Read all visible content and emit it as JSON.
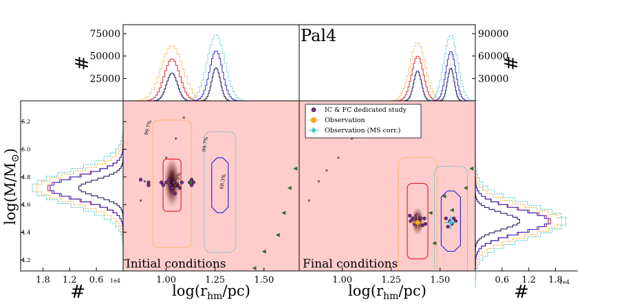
{
  "colors": {
    "panel_bg": "#ffcccc",
    "red": "#e8202a",
    "blue": "#2f2bd8",
    "orange": "#f5a623",
    "teal": "#3fc0c8",
    "navy": "#1a1a5a",
    "green": "#2b6b2b",
    "purple": "#7b2a8c"
  },
  "chart_data": [
    {
      "id": "top-left-histogram",
      "type": "histogram",
      "ylabel": "#",
      "yticks": [
        "25000",
        "50000",
        "75000"
      ],
      "ytick_values": [
        25000,
        50000,
        75000
      ],
      "ylim": [
        0,
        85000
      ],
      "xlim": [
        0.78,
        1.68
      ],
      "series": [
        {
          "name": "IC outer (orange)",
          "color": "orange",
          "center": 1.03,
          "width": 0.055,
          "peak": 62000
        },
        {
          "name": "IC middle (red)",
          "color": "red",
          "center": 1.03,
          "width": 0.04,
          "peak": 47000
        },
        {
          "name": "IC inner (navy)",
          "color": "navy",
          "center": 1.03,
          "width": 0.028,
          "peak": 31000
        },
        {
          "name": "MS outer (teal)",
          "color": "teal",
          "center": 1.255,
          "width": 0.045,
          "peak": 74000
        },
        {
          "name": "MS middle (blue)",
          "color": "blue",
          "center": 1.255,
          "width": 0.033,
          "peak": 56000
        },
        {
          "name": "MS inner (navy)",
          "color": "navy",
          "center": 1.255,
          "width": 0.022,
          "peak": 37000
        }
      ]
    },
    {
      "id": "top-right-histogram",
      "type": "histogram",
      "title": "Pal4",
      "ylabel": "#",
      "yticks": [
        "30000",
        "60000",
        "90000"
      ],
      "ytick_values": [
        30000,
        60000,
        90000
      ],
      "ylim": [
        0,
        102000
      ],
      "xlim": [
        0.78,
        1.68
      ],
      "series": [
        {
          "name": "FC outer (orange)",
          "color": "orange",
          "center": 1.385,
          "width": 0.04,
          "peak": 78000
        },
        {
          "name": "FC middle (red)",
          "color": "red",
          "center": 1.385,
          "width": 0.03,
          "peak": 60000
        },
        {
          "name": "FC inner (navy)",
          "color": "navy",
          "center": 1.385,
          "width": 0.02,
          "peak": 40000
        },
        {
          "name": "MS outer (teal)",
          "color": "teal",
          "center": 1.555,
          "width": 0.035,
          "peak": 88000
        },
        {
          "name": "MS middle (blue)",
          "color": "blue",
          "center": 1.555,
          "width": 0.025,
          "peak": 66000
        },
        {
          "name": "MS inner (navy)",
          "color": "navy",
          "center": 1.555,
          "width": 0.017,
          "peak": 44000
        }
      ]
    },
    {
      "id": "left-side-histogram",
      "type": "histogram",
      "xlabel": "#",
      "xticks": [
        "1.8",
        "1.2",
        "0.6"
      ],
      "xtick_values": [
        1.8,
        1.2,
        0.6
      ],
      "offset_label": "1e4",
      "xlim": [
        2.3,
        0
      ],
      "ylim": [
        4.12,
        5.35
      ],
      "series": [
        {
          "name": "teal",
          "color": "teal",
          "center": 4.72,
          "width": 0.12,
          "peak": 2.05
        },
        {
          "name": "orange",
          "color": "orange",
          "center": 4.72,
          "width": 0.105,
          "peak": 1.95
        },
        {
          "name": "red",
          "color": "red",
          "center": 4.72,
          "width": 0.085,
          "peak": 1.7
        },
        {
          "name": "blue",
          "color": "blue",
          "center": 4.72,
          "width": 0.085,
          "peak": 1.65
        },
        {
          "name": "navy",
          "color": "navy",
          "center": 4.72,
          "width": 0.06,
          "peak": 1.0
        }
      ]
    },
    {
      "id": "right-side-histogram",
      "type": "histogram",
      "xlabel": "#",
      "xticks": [
        "0.6",
        "1.2",
        "1.8"
      ],
      "xtick_values": [
        0.6,
        1.2,
        1.8
      ],
      "offset_label": "1e4",
      "xlim": [
        0,
        2.3
      ],
      "ylim": [
        4.12,
        5.35
      ],
      "series": [
        {
          "name": "teal",
          "color": "teal",
          "center": 4.48,
          "width": 0.12,
          "peak": 2.05
        },
        {
          "name": "orange",
          "color": "orange",
          "center": 4.48,
          "width": 0.105,
          "peak": 1.95
        },
        {
          "name": "red",
          "color": "red",
          "center": 4.48,
          "width": 0.085,
          "peak": 1.7
        },
        {
          "name": "blue",
          "color": "blue",
          "center": 4.48,
          "width": 0.085,
          "peak": 1.65
        },
        {
          "name": "navy",
          "color": "navy",
          "center": 4.48,
          "width": 0.06,
          "peak": 1.0
        }
      ]
    },
    {
      "id": "initial-conditions-panel",
      "type": "scatter",
      "label": "Initial conditions",
      "xlabel": "log(r_hm/pc)",
      "ylabel": "log(M/M_sun)",
      "xlim": [
        0.78,
        1.68
      ],
      "ylim": [
        4.12,
        5.35
      ],
      "xticks": [
        "1.00",
        "1.25",
        "1.50"
      ],
      "xtick_values": [
        1.0,
        1.25,
        1.5
      ],
      "yticks": [
        "4.2",
        "4.4",
        "4.6",
        "4.8",
        "5.0",
        "5.2"
      ],
      "ytick_values": [
        4.2,
        4.4,
        4.6,
        4.8,
        5.0,
        5.2
      ],
      "density": {
        "center": [
          1.03,
          4.76
        ],
        "sx": 0.045,
        "sy": 0.2
      },
      "contour_labels": [
        {
          "text": "99.7%",
          "x": 0.905,
          "y": 5.1,
          "color": "orange",
          "rotate": -75
        },
        {
          "text": "99.7%",
          "x": 1.2,
          "y": 4.98,
          "color": "teal",
          "rotate": -80
        },
        {
          "text": "68.3%",
          "x": 1.29,
          "y": 4.71,
          "color": "blue",
          "rotate": -80
        },
        {
          "text": "68.3%",
          "x": 1.06,
          "y": 4.72,
          "color": "red",
          "rotate": -80
        }
      ],
      "circles": [
        [
          0.87,
          4.78
        ],
        [
          0.91,
          4.76
        ],
        [
          0.91,
          4.74
        ],
        [
          0.975,
          4.76
        ],
        [
          0.985,
          4.74
        ],
        [
          1.0,
          4.76
        ],
        [
          1.015,
          4.78
        ],
        [
          1.02,
          4.74
        ],
        [
          1.03,
          4.72
        ],
        [
          1.04,
          4.76
        ],
        [
          1.045,
          4.68
        ],
        [
          1.06,
          4.74
        ],
        [
          1.07,
          4.72
        ],
        [
          1.08,
          4.76
        ],
        [
          1.12,
          4.76
        ],
        [
          1.13,
          4.74
        ],
        [
          1.14,
          4.76
        ],
        [
          1.13,
          4.78
        ]
      ],
      "stars": [
        [
          0.87,
          4.62
        ],
        [
          0.89,
          4.76
        ],
        [
          1.0,
          4.93
        ],
        [
          1.05,
          5.07
        ],
        [
          1.09,
          5.22
        ]
      ],
      "triangles": [
        [
          1.12,
          4.76
        ],
        [
          1.45,
          4.14
        ],
        [
          1.5,
          4.26
        ],
        [
          1.57,
          4.38
        ],
        [
          1.6,
          4.54
        ],
        [
          1.63,
          4.72
        ],
        [
          1.66,
          4.86
        ]
      ]
    },
    {
      "id": "final-conditions-panel",
      "type": "scatter",
      "label": "Final conditions",
      "xlabel": "log(r_hm/pc)",
      "xlim": [
        0.78,
        1.68
      ],
      "ylim": [
        4.12,
        5.35
      ],
      "xticks": [
        "1.00",
        "1.25",
        "1.50"
      ],
      "xtick_values": [
        1.0,
        1.25,
        1.5
      ],
      "density": {
        "center": [
          1.385,
          4.48
        ],
        "sx": 0.035,
        "sy": 0.11
      },
      "legend": [
        {
          "label": "IC & FC dedicated study",
          "marker": "circle",
          "color": "purple"
        },
        {
          "label": "Observation",
          "marker": "square",
          "color": "orange"
        },
        {
          "label": "Observation (MS corr.)",
          "marker": "circle",
          "color": "teal"
        }
      ],
      "circles": [
        [
          1.345,
          4.52
        ],
        [
          1.35,
          4.48
        ],
        [
          1.36,
          4.5
        ],
        [
          1.37,
          4.46
        ],
        [
          1.38,
          4.52
        ],
        [
          1.39,
          4.48
        ],
        [
          1.4,
          4.5
        ],
        [
          1.41,
          4.45
        ],
        [
          1.42,
          4.5
        ],
        [
          1.425,
          4.46
        ],
        [
          1.53,
          4.5
        ],
        [
          1.54,
          4.44
        ],
        [
          1.55,
          4.48
        ],
        [
          1.56,
          4.46
        ],
        [
          1.57,
          4.5
        ],
        [
          1.58,
          4.48
        ]
      ],
      "stars": [
        [
          0.83,
          4.62
        ],
        [
          0.88,
          4.76
        ],
        [
          0.92,
          4.84
        ],
        [
          0.98,
          4.93
        ],
        [
          1.05,
          5.07
        ],
        [
          1.12,
          5.2
        ]
      ],
      "triangles": [
        [
          1.45,
          4.54
        ],
        [
          1.52,
          4.66
        ],
        [
          1.56,
          4.56
        ],
        [
          1.63,
          4.72
        ],
        [
          1.66,
          4.86
        ],
        [
          1.47,
          4.32
        ]
      ],
      "observation": {
        "x": 1.385,
        "y": 4.47,
        "xerr": 0.035,
        "yerr": 0.06
      },
      "observation_ms": {
        "x": 1.555,
        "y": 4.47,
        "xerr": 0.03,
        "yerr": 0.05
      }
    }
  ]
}
